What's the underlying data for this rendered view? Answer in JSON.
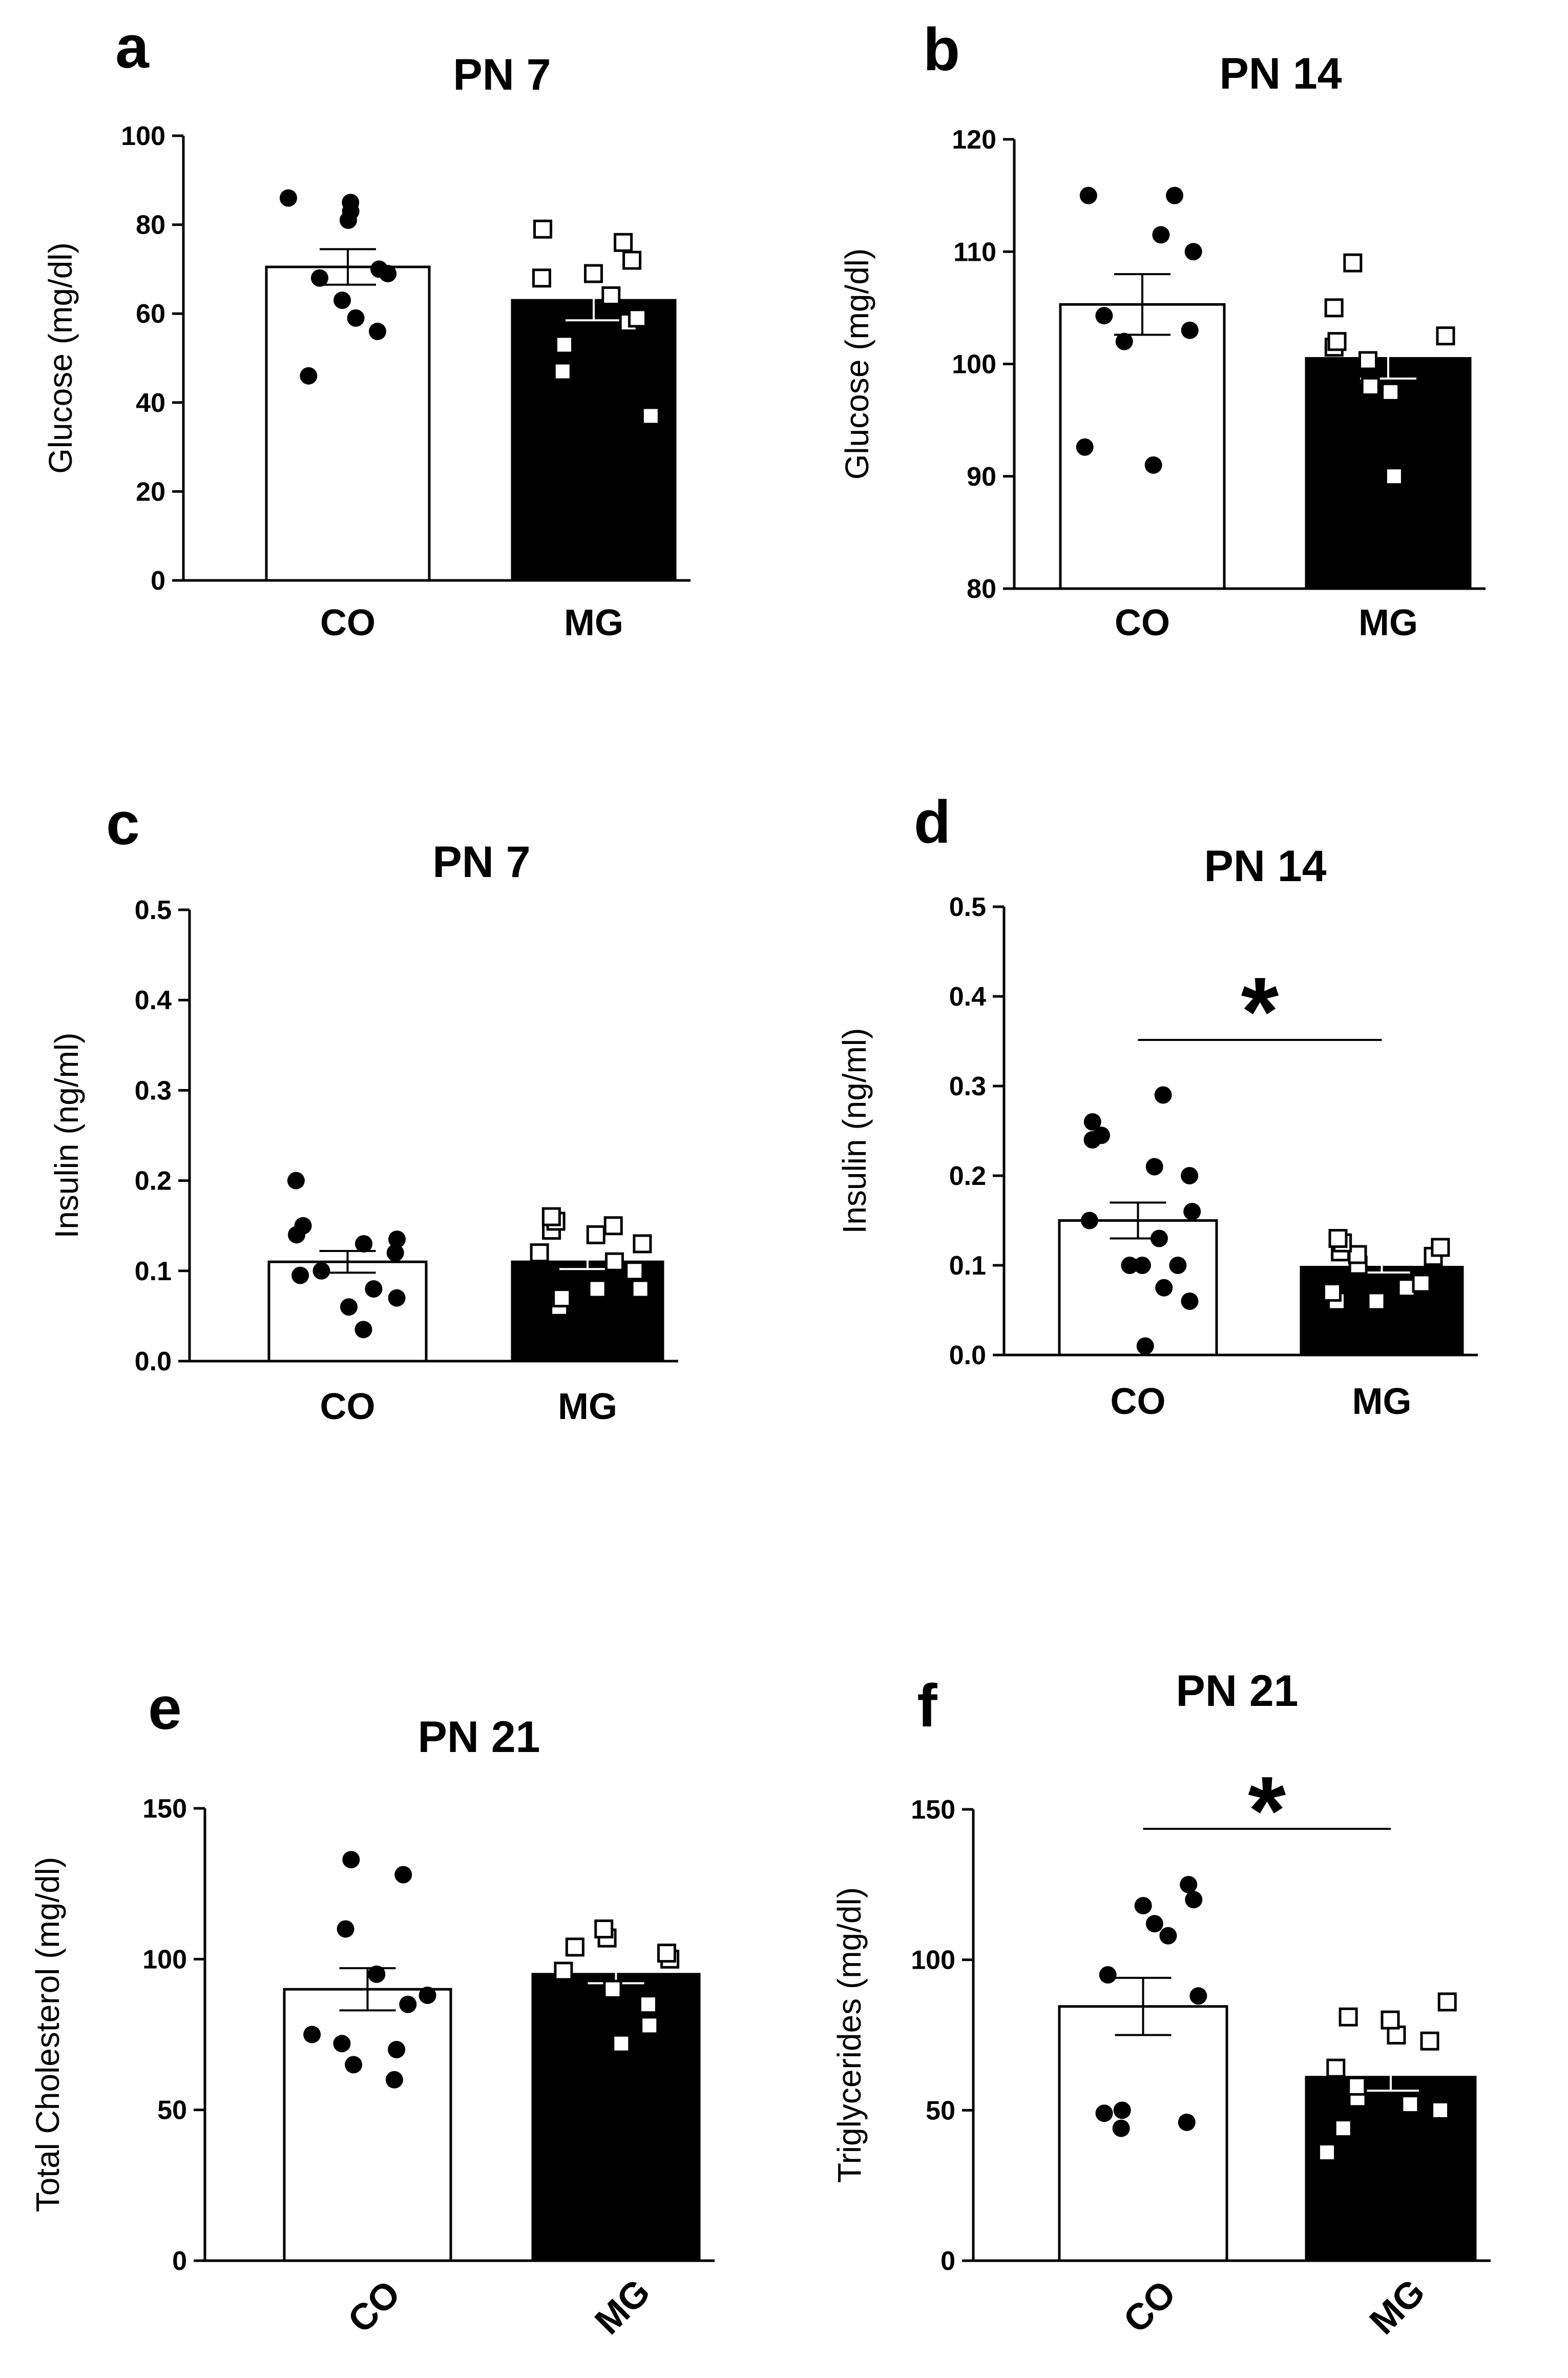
{
  "chart_data": [
    {
      "type": "bar",
      "panel": "a",
      "title": "PN 7",
      "ylabel": "Glucose (mg/dl)",
      "ylim": [
        0,
        100
      ],
      "yticks": [
        "0",
        "20",
        "40",
        "60",
        "80",
        "100"
      ],
      "categories": [
        "CO",
        "MG"
      ],
      "rotate_categories": false,
      "series": [
        {
          "name": "CO",
          "fill": "#ffffff",
          "marker": "circle",
          "mean": 70.5,
          "sem": 4,
          "points": [
            46,
            56,
            59,
            63,
            68,
            69,
            70,
            81,
            83,
            85,
            86
          ]
        },
        {
          "name": "MG",
          "fill": "#000000",
          "marker": "square",
          "mean": 63,
          "sem": 4.5,
          "points": [
            37,
            47,
            53,
            58,
            59,
            64,
            68,
            69,
            72,
            76,
            79
          ]
        }
      ],
      "significance": null
    },
    {
      "type": "bar",
      "panel": "b",
      "title": "PN 14",
      "ylabel": "Glucose (mg/dl)",
      "ylim": [
        80,
        120
      ],
      "yticks": [
        "80",
        "90",
        "100",
        "110",
        "120"
      ],
      "categories": [
        "CO",
        "MG"
      ],
      "rotate_categories": false,
      "series": [
        {
          "name": "CO",
          "fill": "#ffffff",
          "marker": "circle",
          "mean": 105.3,
          "sem": 2.7,
          "points": [
            91,
            92.6,
            102,
            103,
            104.3,
            110,
            111.5,
            115,
            115
          ]
        },
        {
          "name": "MG",
          "fill": "#000000",
          "marker": "square",
          "mean": 100.5,
          "sem": 1.8,
          "points": [
            90,
            97.5,
            98,
            100.3,
            101.5,
            102,
            102.5,
            105,
            109
          ]
        }
      ],
      "significance": null
    },
    {
      "type": "bar",
      "panel": "c",
      "title": "PN 7",
      "ylabel": "Insulin (ng/ml)",
      "ylim": [
        0,
        0.5
      ],
      "yticks": [
        "0.0",
        "0.1",
        "0.2",
        "0.3",
        "0.4",
        "0.5"
      ],
      "categories": [
        "CO",
        "MG"
      ],
      "rotate_categories": false,
      "series": [
        {
          "name": "CO",
          "fill": "#ffffff",
          "marker": "circle",
          "mean": 0.11,
          "sem": 0.012,
          "points": [
            0.035,
            0.06,
            0.07,
            0.08,
            0.095,
            0.1,
            0.12,
            0.13,
            0.135,
            0.14,
            0.15,
            0.2
          ]
        },
        {
          "name": "MG",
          "fill": "#000000",
          "marker": "square",
          "mean": 0.11,
          "sem": 0.008,
          "points": [
            0.06,
            0.07,
            0.08,
            0.08,
            0.1,
            0.11,
            0.12,
            0.13,
            0.14,
            0.145,
            0.15,
            0.155,
            0.16
          ]
        }
      ],
      "significance": null
    },
    {
      "type": "bar",
      "panel": "d",
      "title": "PN 14",
      "ylabel": "Insulin (ng/ml)",
      "ylim": [
        0,
        0.5
      ],
      "yticks": [
        "0.0",
        "0.1",
        "0.2",
        "0.3",
        "0.4",
        "0.5"
      ],
      "categories": [
        "CO",
        "MG"
      ],
      "rotate_categories": false,
      "series": [
        {
          "name": "CO",
          "fill": "#ffffff",
          "marker": "circle",
          "mean": 0.15,
          "sem": 0.02,
          "points": [
            0.01,
            0.06,
            0.075,
            0.1,
            0.1,
            0.1,
            0.13,
            0.15,
            0.16,
            0.2,
            0.21,
            0.24,
            0.245,
            0.26,
            0.29
          ]
        },
        {
          "name": "MG",
          "fill": "#000000",
          "marker": "square",
          "mean": 0.098,
          "sem": 0.006,
          "points": [
            0.06,
            0.06,
            0.07,
            0.075,
            0.08,
            0.1,
            0.11,
            0.112,
            0.115,
            0.12,
            0.125,
            0.13
          ]
        }
      ],
      "significance": "*"
    },
    {
      "type": "bar",
      "panel": "e",
      "title": "PN 21",
      "ylabel": "Total Cholesterol (mg/dl)",
      "ylim": [
        0,
        150
      ],
      "yticks": [
        "0",
        "50",
        "100",
        "150"
      ],
      "categories": [
        "CO",
        "MG"
      ],
      "rotate_categories": true,
      "series": [
        {
          "name": "CO",
          "fill": "#ffffff",
          "marker": "circle",
          "mean": 90,
          "sem": 7,
          "points": [
            60,
            65,
            70,
            72,
            75,
            85,
            88,
            95,
            110,
            128,
            133
          ]
        },
        {
          "name": "MG",
          "fill": "#000000",
          "marker": "square",
          "mean": 95,
          "sem": 3,
          "points": [
            72,
            78,
            85,
            90,
            96,
            100,
            102,
            104,
            107,
            110
          ]
        }
      ],
      "significance": null
    },
    {
      "type": "bar",
      "panel": "f",
      "title": "PN 21",
      "ylabel": "Triglycerides (mg/dl)",
      "ylim": [
        0,
        150
      ],
      "yticks": [
        "0",
        "50",
        "100",
        "150"
      ],
      "categories": [
        "CO",
        "MG"
      ],
      "rotate_categories": true,
      "series": [
        {
          "name": "CO",
          "fill": "#ffffff",
          "marker": "circle",
          "mean": 84.5,
          "sem": 9.5,
          "points": [
            44,
            46,
            49,
            50,
            88,
            95,
            108,
            112,
            118,
            120,
            125
          ]
        },
        {
          "name": "MG",
          "fill": "#000000",
          "marker": "square",
          "mean": 61,
          "sem": 4.5,
          "points": [
            36,
            44,
            50,
            52,
            54,
            58,
            64,
            73,
            75,
            80,
            81,
            86
          ]
        }
      ],
      "significance": "*"
    }
  ]
}
